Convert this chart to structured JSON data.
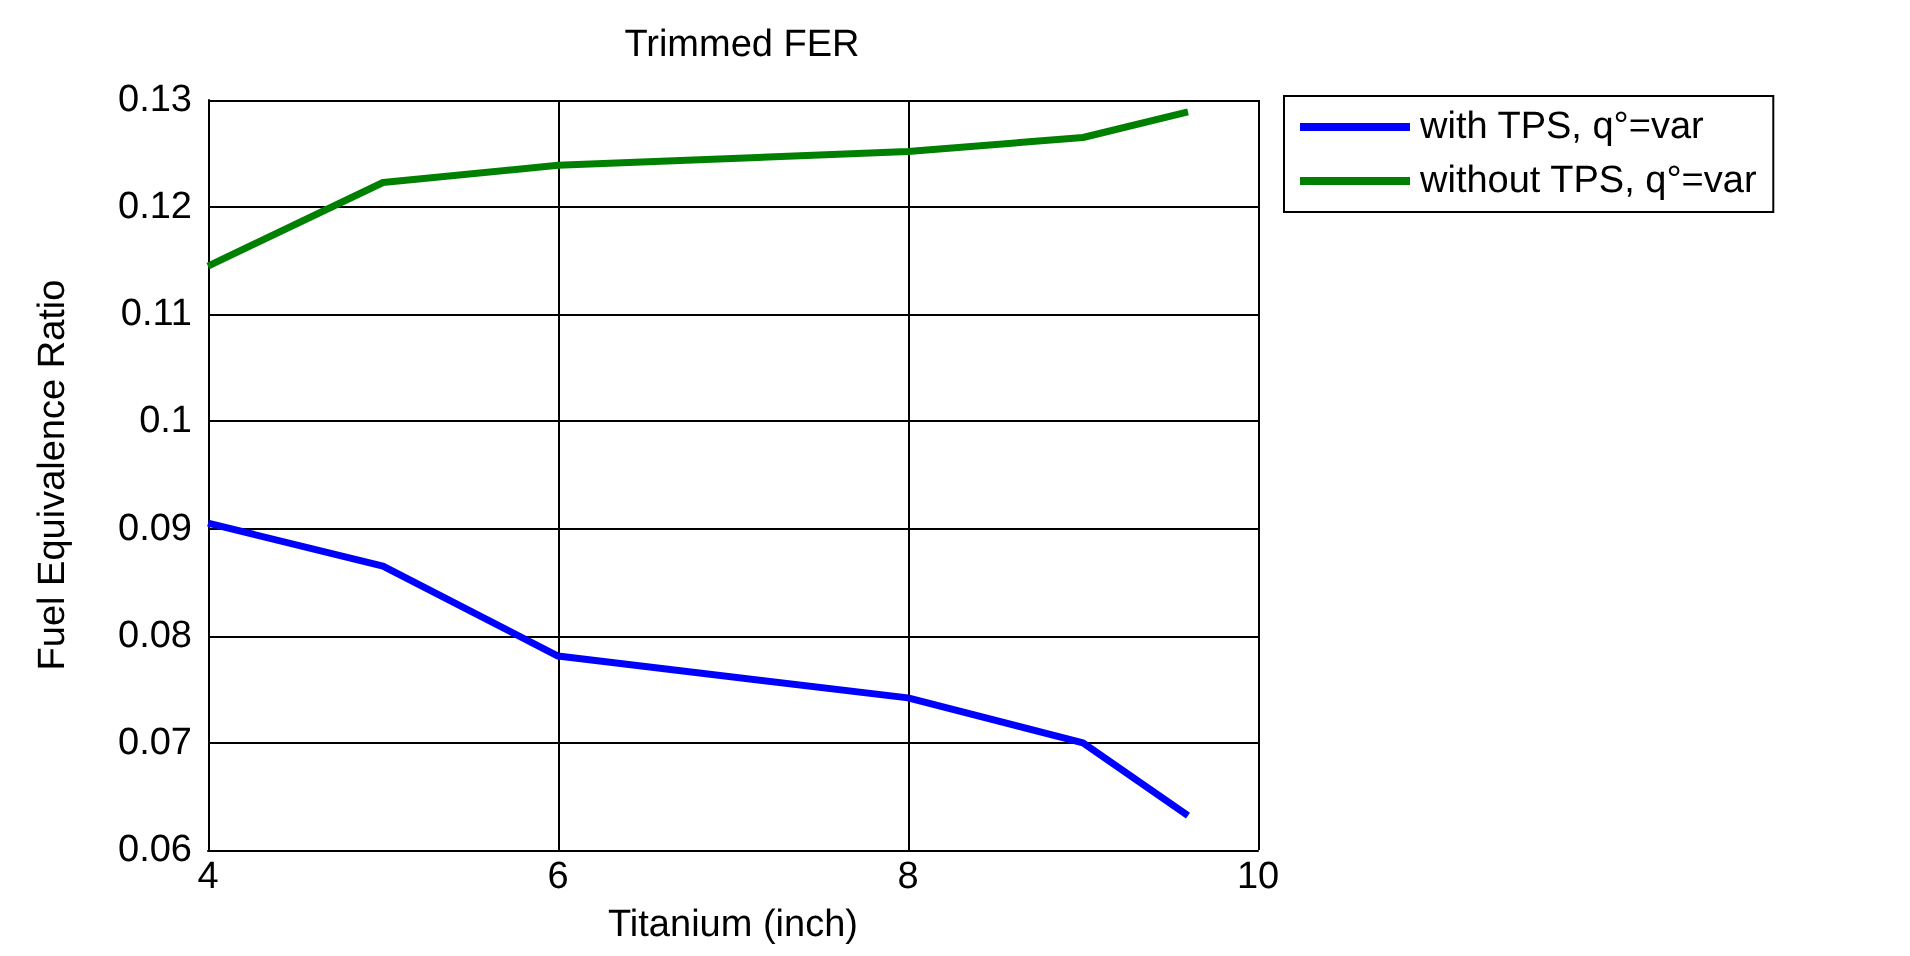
{
  "chart_data": {
    "type": "line",
    "title": "Trimmed FER",
    "xlabel": "Titanium (inch)",
    "ylabel": "Fuel Equivalence Ratio",
    "x": [
      4,
      5,
      6,
      8,
      9,
      9.6
    ],
    "series": [
      {
        "name": "with TPS, q°=var",
        "color": "#0000ff",
        "values": [
          0.0905,
          0.0865,
          0.0781,
          0.0742,
          0.07,
          0.0632
        ]
      },
      {
        "name": "without TPS, q°=var",
        "color": "#008000",
        "values": [
          0.1145,
          0.1223,
          0.1239,
          0.1252,
          0.1265,
          0.1289
        ]
      }
    ],
    "xlim": [
      4,
      10
    ],
    "xticks": [
      4,
      6,
      8,
      10
    ],
    "ylim": [
      0.06,
      0.13
    ],
    "yticks": [
      0.06,
      0.07,
      0.08,
      0.09,
      0.1,
      0.11,
      0.12,
      0.13
    ],
    "grid": true,
    "legend": "top right",
    "marker": "none",
    "line_style": "solid"
  }
}
